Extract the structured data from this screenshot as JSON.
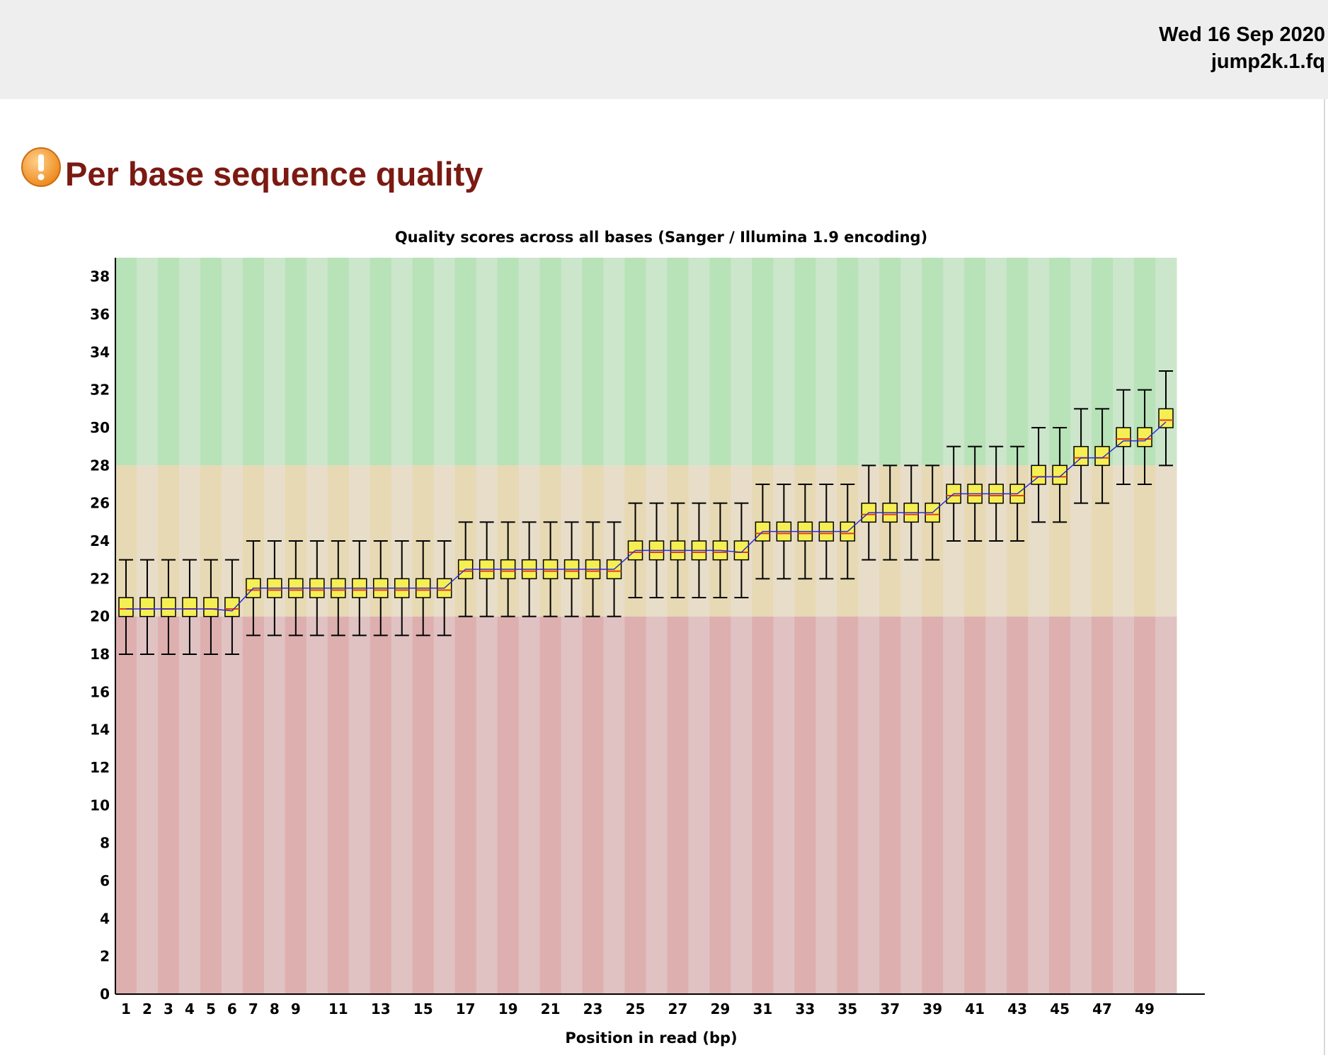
{
  "header": {
    "date": "Wed 16 Sep 2020",
    "filename": "jump2k.1.fq"
  },
  "module": {
    "status_icon": "warning-icon",
    "title": "Per base sequence quality"
  },
  "colors": {
    "warning_icon": "#f39a2b",
    "title": "#7b1a12",
    "zone_good_a": "#b8e2b8",
    "zone_good_b": "#cbe6cb",
    "zone_mid_a": "#e6d9b4",
    "zone_mid_b": "#e8ddc8",
    "zone_bad_a": "#deafaf",
    "zone_bad_b": "#e0c2c2",
    "box_fill": "#f5ef54",
    "median_line": "#e43b24",
    "mean_line": "#2b2bd6",
    "whisker": "#000000"
  },
  "chart_data": {
    "type": "box",
    "title": "Quality scores across all bases (Sanger / Illumina 1.9 encoding)",
    "xlabel": "Position in read (bp)",
    "ylabel": "",
    "ylim": [
      0,
      39
    ],
    "y_ticks": [
      "0",
      "2",
      "4",
      "6",
      "8",
      "10",
      "12",
      "14",
      "16",
      "18",
      "20",
      "22",
      "24",
      "26",
      "28",
      "30",
      "32",
      "34",
      "36",
      "38"
    ],
    "x_tick_labels": [
      "1",
      "2",
      "3",
      "4",
      "5",
      "6",
      "7",
      "8",
      "9",
      "11",
      "13",
      "15",
      "17",
      "19",
      "21",
      "23",
      "25",
      "27",
      "29",
      "31",
      "33",
      "35",
      "37",
      "39",
      "41",
      "43",
      "45",
      "47",
      "49"
    ],
    "x_tick_positions": [
      1,
      2,
      3,
      4,
      5,
      6,
      7,
      8,
      9,
      11,
      13,
      15,
      17,
      19,
      21,
      23,
      25,
      27,
      29,
      31,
      33,
      35,
      37,
      39,
      41,
      43,
      45,
      47,
      49
    ],
    "zones": [
      {
        "name": "good",
        "from": 28,
        "to": 39
      },
      {
        "name": "reasonable",
        "from": 20,
        "to": 28
      },
      {
        "name": "poor",
        "from": 0,
        "to": 20
      }
    ],
    "positions": [
      1,
      2,
      3,
      4,
      5,
      6,
      7,
      8,
      9,
      10,
      11,
      12,
      13,
      14,
      15,
      16,
      17,
      18,
      19,
      20,
      21,
      22,
      23,
      24,
      25,
      26,
      27,
      28,
      29,
      30,
      31,
      32,
      33,
      34,
      35,
      36,
      37,
      38,
      39,
      40,
      41,
      42,
      43,
      44,
      45,
      46,
      47,
      48,
      49,
      50
    ],
    "whisker_low": [
      18,
      18,
      18,
      18,
      18,
      18,
      19,
      19,
      19,
      19,
      19,
      19,
      19,
      19,
      19,
      19,
      20,
      20,
      20,
      20,
      20,
      20,
      20,
      20,
      21,
      21,
      21,
      21,
      21,
      21,
      22,
      22,
      22,
      22,
      22,
      23,
      23,
      23,
      23,
      24,
      24,
      24,
      24,
      25,
      25,
      26,
      26,
      27,
      27,
      28
    ],
    "box_low": [
      20,
      20,
      20,
      20,
      20,
      20,
      21,
      21,
      21,
      21,
      21,
      21,
      21,
      21,
      21,
      21,
      22,
      22,
      22,
      22,
      22,
      22,
      22,
      22,
      23,
      23,
      23,
      23,
      23,
      23,
      24,
      24,
      24,
      24,
      24,
      25,
      25,
      25,
      25,
      26,
      26,
      26,
      26,
      27,
      27,
      28,
      28,
      29,
      29,
      30
    ],
    "box_high": [
      21,
      21,
      21,
      21,
      21,
      21,
      22,
      22,
      22,
      22,
      22,
      22,
      22,
      22,
      22,
      22,
      23,
      23,
      23,
      23,
      23,
      23,
      23,
      23,
      24,
      24,
      24,
      24,
      24,
      24,
      25,
      25,
      25,
      25,
      25,
      26,
      26,
      26,
      26,
      27,
      27,
      27,
      27,
      28,
      28,
      29,
      29,
      30,
      30,
      31
    ],
    "whisker_high": [
      23,
      23,
      23,
      23,
      23,
      23,
      24,
      24,
      24,
      24,
      24,
      24,
      24,
      24,
      24,
      24,
      25,
      25,
      25,
      25,
      25,
      25,
      25,
      25,
      26,
      26,
      26,
      26,
      26,
      26,
      27,
      27,
      27,
      27,
      27,
      28,
      28,
      28,
      28,
      29,
      29,
      29,
      29,
      30,
      30,
      31,
      31,
      32,
      32,
      33
    ],
    "median": [
      20.4,
      20.4,
      20.4,
      20.4,
      20.4,
      20.4,
      21.4,
      21.4,
      21.4,
      21.4,
      21.4,
      21.4,
      21.4,
      21.4,
      21.4,
      21.4,
      22.4,
      22.4,
      22.4,
      22.4,
      22.4,
      22.4,
      22.4,
      22.4,
      23.4,
      23.4,
      23.4,
      23.4,
      23.4,
      23.4,
      24.4,
      24.4,
      24.4,
      24.4,
      24.4,
      25.4,
      25.4,
      25.4,
      25.4,
      26.4,
      26.4,
      26.4,
      26.4,
      27.4,
      27.4,
      28.4,
      28.4,
      29.4,
      29.4,
      30.4
    ],
    "mean": [
      20.4,
      20.4,
      20.4,
      20.4,
      20.4,
      20.3,
      21.5,
      21.5,
      21.5,
      21.5,
      21.5,
      21.5,
      21.5,
      21.5,
      21.5,
      21.5,
      22.5,
      22.5,
      22.5,
      22.5,
      22.5,
      22.5,
      22.5,
      22.5,
      23.5,
      23.5,
      23.5,
      23.5,
      23.5,
      23.4,
      24.5,
      24.5,
      24.5,
      24.5,
      24.5,
      25.5,
      25.5,
      25.5,
      25.5,
      26.5,
      26.5,
      26.5,
      26.5,
      27.4,
      27.4,
      28.4,
      28.4,
      29.3,
      29.3,
      30.3
    ],
    "grid": false,
    "legend": "none"
  }
}
